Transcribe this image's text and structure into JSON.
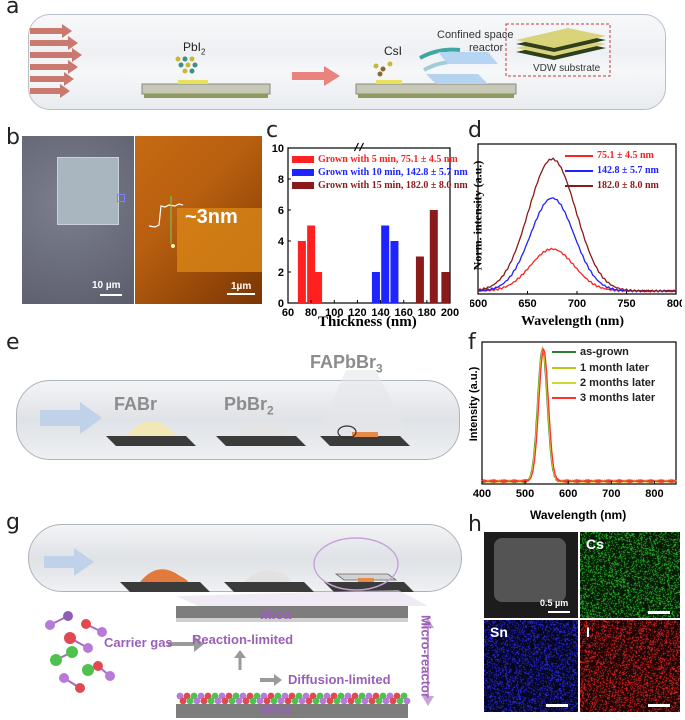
{
  "panel_labels": {
    "a": "a",
    "b": "b",
    "c": "c",
    "d": "d",
    "e": "e",
    "f": "f",
    "g": "g",
    "h": "h"
  },
  "panel_a": {
    "left_material": "PbI",
    "left_material_sub": "2",
    "right_material": "CsI",
    "confined_label_1": "Confined space",
    "confined_label_2": "reactor",
    "substrate_label": "VDW substrate"
  },
  "panel_b": {
    "scale_left": "10 µm",
    "scale_right": "1µm",
    "height_annotation": "~3nm"
  },
  "panel_c": {
    "chart_data": {
      "type": "bar",
      "title": "",
      "xlabel": "Thickness (nm)",
      "ylabel": "",
      "xlim": [
        60,
        200
      ],
      "ylim": [
        0,
        10
      ],
      "x_ticks": [
        "60",
        "80",
        "100",
        "120",
        "140",
        "160",
        "180",
        "200"
      ],
      "y_ticks": [
        "0",
        "2",
        "4",
        "6",
        "8",
        "10"
      ],
      "series": [
        {
          "name": "Grown with  5  min,  75.1  ± 4.5 nm",
          "color": "#ff2020",
          "x": [
            72,
            80,
            86
          ],
          "values": [
            4,
            5,
            2
          ]
        },
        {
          "name": "Grown with 10 min, 142.8 ± 5.7 nm",
          "color": "#1e24ff",
          "x": [
            136,
            144,
            152
          ],
          "values": [
            2,
            5,
            4
          ]
        },
        {
          "name": "Grown with 15 min, 182.0 ± 8.0 nm",
          "color": "#8b1a1a",
          "x": [
            174,
            186,
            196
          ],
          "values": [
            3,
            6,
            2
          ]
        }
      ]
    }
  },
  "panel_d": {
    "chart_data": {
      "type": "line",
      "xlabel": "Wavelength (nm)",
      "ylabel": "Norm. intensity (a.u.)",
      "xlim": [
        600,
        800
      ],
      "x_ticks": [
        "600",
        "650",
        "700",
        "750",
        "800"
      ],
      "series": [
        {
          "name": "75.1  ± 4.5 nm",
          "color": "#ff2020",
          "peak": 675,
          "amplitude": 0.28,
          "width": 22
        },
        {
          "name": "142.8 ± 5.7 nm",
          "color": "#1e24ff",
          "peak": 675,
          "amplitude": 0.62,
          "width": 22
        },
        {
          "name": "182.0 ± 8.0 nm",
          "color": "#8b1a1a",
          "peak": 675,
          "amplitude": 0.88,
          "width": 24
        }
      ]
    }
  },
  "panel_e": {
    "src1": "FABr",
    "src2": "PbBr",
    "src2_sub": "2",
    "product": "FAPbBr",
    "product_sub": "3"
  },
  "panel_f": {
    "chart_data": {
      "type": "line",
      "xlabel": "Wavelength (nm)",
      "ylabel": "Intensity (a.u.)",
      "xlim": [
        400,
        850
      ],
      "x_ticks": [
        "400",
        "500",
        "600",
        "700",
        "800"
      ],
      "series": [
        {
          "name": "as-grown",
          "color": "#2e7d32",
          "peak": 540,
          "amplitude": 0.93,
          "width": 11
        },
        {
          "name": "1  month later",
          "color": "#b7c91e",
          "peak": 541,
          "amplitude": 0.93,
          "width": 11
        },
        {
          "name": "2  months later",
          "color": "#d6d62c",
          "peak": 542,
          "amplitude": 0.93,
          "width": 11
        },
        {
          "name": "3  months later",
          "color": "#ff3030",
          "peak": 543,
          "amplitude": 0.93,
          "width": 11
        }
      ]
    }
  },
  "panel_g": {
    "mica_top": "Mica",
    "mica_bottom": "Mica",
    "carrier_gas": "Carrier gas",
    "reaction_limited": "Reaction-limited",
    "diffusion_limited": "Diffusion-limited",
    "micro_reactor": "Micro-reactor"
  },
  "panel_h": {
    "scale": "0.5 µm",
    "cs": "Cs",
    "sn": "Sn",
    "i": "I"
  },
  "colors": {
    "red": "#ff2020",
    "blue": "#1e24ff",
    "darkred": "#8b1a1a",
    "purple": "#9b5fb8"
  }
}
